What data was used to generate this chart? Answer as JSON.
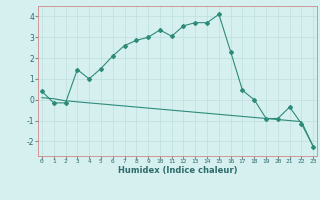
{
  "xlabel": "Humidex (Indice chaleur)",
  "x": [
    0,
    1,
    2,
    3,
    4,
    5,
    6,
    7,
    8,
    9,
    10,
    11,
    12,
    13,
    14,
    15,
    16,
    17,
    18,
    19,
    20,
    21,
    22,
    23
  ],
  "y_curve": [
    0.4,
    -0.15,
    -0.15,
    1.45,
    1.0,
    1.5,
    2.1,
    2.6,
    2.85,
    3.0,
    3.35,
    3.05,
    3.55,
    3.7,
    3.7,
    4.1,
    2.3,
    0.45,
    0.0,
    -0.9,
    -0.9,
    -0.35,
    -1.15,
    -2.25
  ],
  "y_line": [
    0.1,
    0.05,
    -0.05,
    -0.1,
    -0.15,
    -0.2,
    -0.25,
    -0.3,
    -0.35,
    -0.4,
    -0.45,
    -0.5,
    -0.55,
    -0.6,
    -0.65,
    -0.7,
    -0.75,
    -0.8,
    -0.85,
    -0.9,
    -0.95,
    -1.0,
    -1.05,
    -2.25
  ],
  "line_color": "#2e8b7a",
  "bg_color": "#d6f0f0",
  "grid_color": "#c0dede",
  "tick_color": "#2e6b6b",
  "ylim": [
    -2.7,
    4.5
  ],
  "xlim": [
    -0.3,
    23.3
  ],
  "yticks": [
    -2,
    -1,
    0,
    1,
    2,
    3,
    4
  ],
  "xticks": [
    0,
    1,
    2,
    3,
    4,
    5,
    6,
    7,
    8,
    9,
    10,
    11,
    12,
    13,
    14,
    15,
    16,
    17,
    18,
    19,
    20,
    21,
    22,
    23
  ]
}
